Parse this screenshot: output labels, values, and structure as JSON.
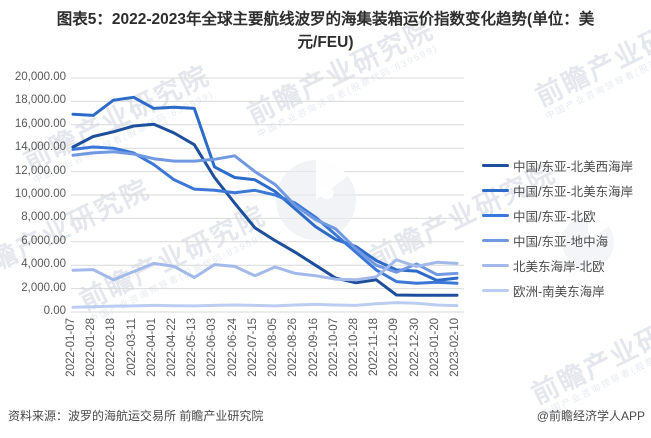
{
  "title": "图表5：2022-2023年全球主要航线波罗的海集装箱运价指数变化趋势(单位：美元/FEU)",
  "footer": {
    "source": "资料来源：波罗的海航运交易所 前瞻产业研究院",
    "credit": "@前瞻经济学人APP"
  },
  "watermark": {
    "brand": "前瞻产业研究院",
    "sub": "中国产业咨询领导者(股票代码:839599)"
  },
  "chart_data": {
    "type": "line",
    "title": "图表5：2022-2023年全球主要航线波罗的海集装箱运价指数变化趋势(单位：美元/FEU)",
    "x": [
      "2022-01-07",
      "2022-01-28",
      "2022-02-18",
      "2022-03-11",
      "2022-04-01",
      "2022-04-22",
      "2022-05-13",
      "2022-06-03",
      "2022-06-24",
      "2022-07-15",
      "2022-08-05",
      "2022-08-26",
      "2022-09-16",
      "2022-10-07",
      "2022-10-28",
      "2022-11-18",
      "2022-12-09",
      "2022-12-30",
      "2023-01-20",
      "2023-02-10"
    ],
    "ylim": [
      0,
      20000
    ],
    "ytick_step": 2000,
    "ytick_labels": [
      "0.00",
      "2,000.00",
      "4,000.00",
      "6,000.00",
      "8,000.00",
      "10,000.00",
      "12,000.00",
      "14,000.00",
      "16,000.00",
      "18,000.00",
      "20,000.00"
    ],
    "grid": true,
    "legend_position": "right",
    "series": [
      {
        "name": "中国/东亚-北美西海岸",
        "color": "#1e4f9c",
        "values": [
          14100,
          15000,
          15400,
          15900,
          16050,
          15300,
          14300,
          11500,
          9300,
          7200,
          6100,
          5100,
          4000,
          2900,
          2500,
          2750,
          1450,
          1430,
          1430,
          1430
        ]
      },
      {
        "name": "中国/东亚-北美东海岸",
        "color": "#2d6bc8",
        "values": [
          16900,
          16800,
          18100,
          18350,
          17400,
          17500,
          17400,
          12400,
          11500,
          11300,
          10300,
          8800,
          7300,
          6200,
          5600,
          4400,
          3600,
          3500,
          2700,
          2900
        ]
      },
      {
        "name": "中国/东亚-北欧",
        "color": "#3c78d8",
        "values": [
          13900,
          14100,
          14000,
          13600,
          12600,
          11300,
          10500,
          10400,
          10200,
          10400,
          10000,
          9300,
          8100,
          6600,
          5100,
          3600,
          2600,
          2450,
          2550,
          2450
        ]
      },
      {
        "name": "中国/东亚-地中海",
        "color": "#7199e2",
        "values": [
          13400,
          13600,
          13700,
          13500,
          13100,
          12900,
          12900,
          13050,
          13350,
          12000,
          10900,
          9100,
          7900,
          7100,
          5400,
          4000,
          3400,
          4100,
          3200,
          3300
        ]
      },
      {
        "name": "北美东海岸-北欧",
        "color": "#a3b9ea",
        "values": [
          3570,
          3620,
          2750,
          3450,
          4150,
          3900,
          2950,
          4050,
          3900,
          3100,
          3850,
          3300,
          3100,
          2800,
          2750,
          3000,
          4450,
          3900,
          4250,
          4150
        ]
      },
      {
        "name": "欧洲-南美东海岸",
        "color": "#bccdf2",
        "values": [
          400,
          450,
          500,
          520,
          560,
          540,
          520,
          560,
          600,
          560,
          520,
          600,
          650,
          600,
          560,
          700,
          800,
          750,
          600,
          550
        ]
      }
    ]
  }
}
